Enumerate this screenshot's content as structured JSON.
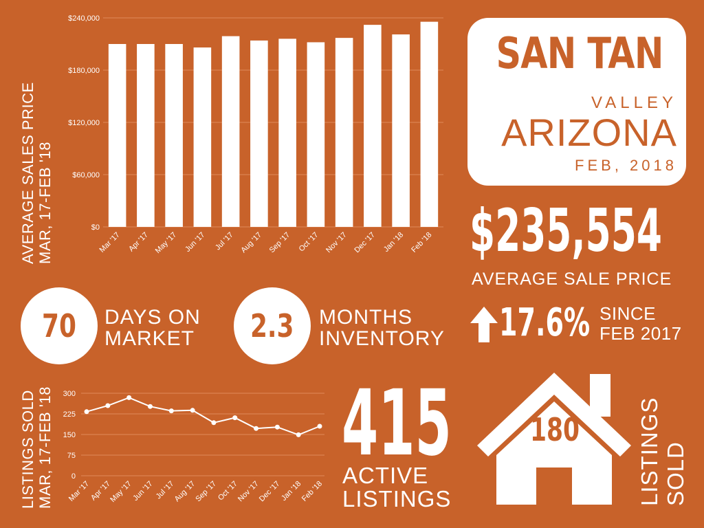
{
  "colors": {
    "background": "#c8622a",
    "foreground": "#ffffff"
  },
  "chart_data": [
    {
      "type": "bar",
      "ylabel_lines": [
        "AVERAGE SALES PRICE",
        "MAR, 17-FEB '18"
      ],
      "categories": [
        "Mar '17",
        "Apr '17",
        "May '17",
        "Jun '17",
        "Jul '17",
        "Aug '17",
        "Sep '17",
        "Oct '17",
        "Nov '17",
        "Dec '17",
        "Jan '18",
        "Feb '18"
      ],
      "values": [
        210000,
        210000,
        210000,
        206000,
        219000,
        214000,
        216000,
        212000,
        217000,
        232000,
        221000,
        235554
      ],
      "ylim": [
        0,
        240000
      ],
      "yticks": [
        "$0",
        "$60,000",
        "$120,000",
        "$180,000",
        "$240,000"
      ],
      "grid": true
    },
    {
      "type": "line",
      "ylabel_lines": [
        "LISTINGS SOLD",
        "MAR, 17-FEB '18"
      ],
      "categories": [
        "Mar '17",
        "Apr '17",
        "May '17",
        "Jun '17",
        "Jul '17",
        "Aug '17",
        "Sep '17",
        "Oct '17",
        "Nov '17",
        "Dec '17",
        "Jan '18",
        "Feb '18"
      ],
      "values": [
        233,
        255,
        284,
        252,
        236,
        238,
        193,
        211,
        172,
        177,
        149,
        180
      ],
      "ylim": [
        0,
        300
      ],
      "yticks": [
        "0",
        "75",
        "150",
        "225",
        "300"
      ],
      "grid": true
    }
  ],
  "location": {
    "line1": "SAN TAN",
    "line2": "VALLEY",
    "line3": "ARIZONA",
    "date": "FEB, 2018"
  },
  "avg_price": {
    "value": "$235,554",
    "label": "AVERAGE  SALE PRICE"
  },
  "change": {
    "value": "17.6%",
    "line1": "SINCE",
    "line2": "FEB 2017",
    "arrow_icon": "up-arrow-icon"
  },
  "days_on_market": {
    "value": "70",
    "line1": "DAYS ON",
    "line2": "MARKET"
  },
  "months_inventory": {
    "value": "2.3",
    "line1": "MONTHS",
    "line2": "INVENTORY"
  },
  "active_listings": {
    "value": "415",
    "line1": "ACTIVE",
    "line2": "LISTINGS"
  },
  "listings_sold": {
    "value": "180",
    "line1": "LISTINGS",
    "line2": "SOLD",
    "icon": "house-icon"
  }
}
